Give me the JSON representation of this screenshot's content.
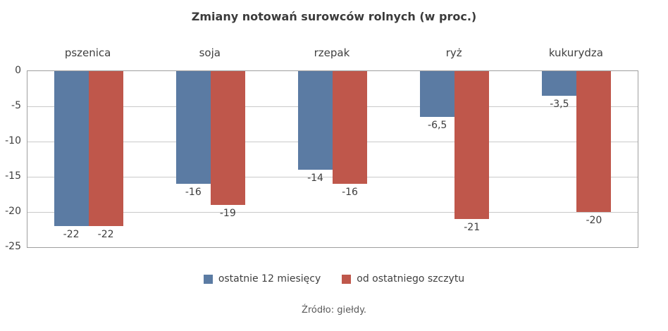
{
  "chart_data": {
    "type": "bar",
    "title": "Zmiany notowań surowców rolnych (w proc.)",
    "categories": [
      "pszenica",
      "soja",
      "rzepak",
      "ryż",
      "kukurydza"
    ],
    "series": [
      {
        "name": "ostatnie 12 miesięcy",
        "color": "#5b7ba3",
        "values": [
          -22,
          -16,
          -14,
          -6.5,
          -3.5
        ],
        "labels": [
          "-22",
          "-16",
          "-14",
          "-6,5",
          "-3,5"
        ]
      },
      {
        "name": "od ostatniego szczytu",
        "color": "#bf574b",
        "values": [
          -22,
          -19,
          -16,
          -21,
          -20
        ],
        "labels": [
          "-22",
          "-19",
          "-16",
          "-21",
          "-20"
        ]
      }
    ],
    "ylim": [
      -25,
      0
    ],
    "yticks": [
      0,
      -5,
      -10,
      -15,
      -20,
      -25
    ],
    "ytick_labels": [
      "0",
      "-5",
      "-10",
      "-15",
      "-20",
      "-25"
    ],
    "grid": true,
    "legend_position": "bottom"
  },
  "source_note": "Źródło: giełdy."
}
